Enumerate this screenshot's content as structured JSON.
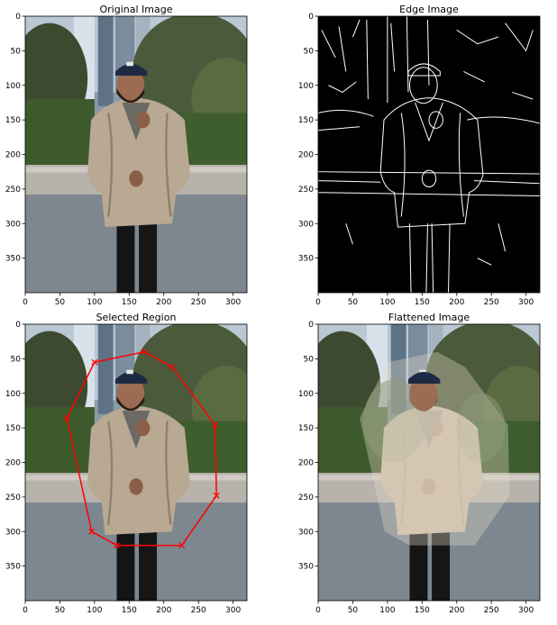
{
  "figure": {
    "panels": [
      {
        "key": "original",
        "title": "Original Image",
        "content": "photo",
        "xlim": [
          0,
          320
        ],
        "ylim": [
          400,
          0
        ],
        "xticks": [
          0,
          50,
          100,
          150,
          200,
          250,
          300
        ],
        "yticks": [
          0,
          50,
          100,
          150,
          200,
          250,
          300,
          350
        ]
      },
      {
        "key": "edge",
        "title": "Edge Image",
        "content": "edges",
        "xlim": [
          0,
          320
        ],
        "ylim": [
          400,
          0
        ],
        "xticks": [
          0,
          50,
          100,
          150,
          200,
          250,
          300
        ],
        "yticks": [
          0,
          50,
          100,
          150,
          200,
          250,
          300,
          350
        ]
      },
      {
        "key": "selected",
        "title": "Selected Region",
        "content": "photo",
        "xlim": [
          0,
          320
        ],
        "ylim": [
          400,
          0
        ],
        "xticks": [
          0,
          50,
          100,
          150,
          200,
          250,
          300
        ],
        "yticks": [
          0,
          50,
          100,
          150,
          200,
          250,
          300,
          350
        ],
        "polygon": {
          "color": "#ff0000",
          "points": [
            [
              100,
              55
            ],
            [
              172,
              40
            ],
            [
              212,
              62
            ],
            [
              274,
              146
            ],
            [
              276,
              248
            ],
            [
              226,
              320
            ],
            [
              132,
              320
            ],
            [
              96,
              300
            ],
            [
              60,
              136
            ],
            [
              100,
              55
            ]
          ]
        }
      },
      {
        "key": "flattened",
        "title": "Flattened Image",
        "content": "photo-flattened",
        "xlim": [
          0,
          320
        ],
        "ylim": [
          400,
          0
        ],
        "xticks": [
          0,
          50,
          100,
          150,
          200,
          250,
          300
        ],
        "yticks": [
          0,
          50,
          100,
          150,
          200,
          250,
          300,
          350
        ]
      }
    ]
  }
}
